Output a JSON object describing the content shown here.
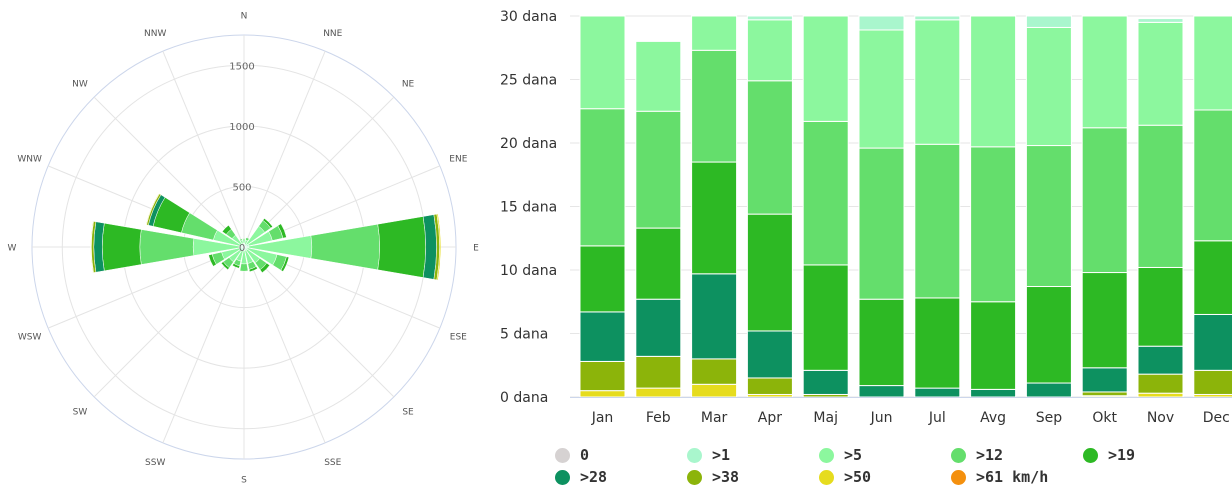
{
  "colors": {
    "0": "#d6d2d2",
    "1": "#a9f6cd",
    "5": "#8cf79e",
    "12": "#64de6c",
    "19": "#2db924",
    "28": "#0d9160",
    "38": "#8cb40a",
    "50": "#e6dc1e",
    "61": "#f4900e"
  },
  "chart_data": [
    {
      "type": "polar-stacked-bar",
      "directions": [
        "N",
        "NNE",
        "NE",
        "ENE",
        "E",
        "ESE",
        "SE",
        "SSE",
        "S",
        "SSW",
        "SW",
        "WSW",
        "W",
        "WNW",
        "NW",
        "NNW"
      ],
      "radial_ticks": [
        "0",
        "500",
        "1000",
        "1500"
      ],
      "rmax": 1750,
      "series": [
        {
          "name": ">1",
          "color_key": "1",
          "values": [
            30,
            20,
            30,
            40,
            40,
            30,
            30,
            30,
            30,
            30,
            40,
            40,
            40,
            30,
            30,
            30
          ]
        },
        {
          "name": ">5",
          "color_key": "5",
          "values": [
            30,
            40,
            180,
            200,
            520,
            250,
            130,
            110,
            110,
            90,
            110,
            150,
            380,
            230,
            90,
            30
          ]
        },
        {
          "name": ">12",
          "color_key": "12",
          "values": [
            10,
            20,
            60,
            90,
            560,
            80,
            70,
            50,
            60,
            40,
            60,
            80,
            440,
            270,
            60,
            10
          ]
        },
        {
          "name": ">19",
          "color_key": "19",
          "values": [
            0,
            0,
            20,
            30,
            380,
            20,
            30,
            20,
            0,
            20,
            20,
            30,
            310,
            240,
            40,
            0
          ]
        },
        {
          "name": ">28",
          "color_key": "28",
          "values": [
            0,
            0,
            0,
            0,
            90,
            0,
            0,
            0,
            0,
            0,
            0,
            0,
            70,
            40,
            0,
            0
          ]
        },
        {
          "name": ">38",
          "color_key": "38",
          "values": [
            0,
            0,
            0,
            0,
            25,
            0,
            0,
            0,
            0,
            0,
            0,
            0,
            20,
            15,
            0,
            0
          ]
        },
        {
          "name": ">50",
          "color_key": "50",
          "values": [
            0,
            0,
            0,
            0,
            10,
            0,
            0,
            0,
            0,
            0,
            0,
            0,
            5,
            5,
            0,
            0
          ]
        }
      ]
    },
    {
      "type": "bar",
      "stacked": true,
      "categories": [
        "Jan",
        "Feb",
        "Mar",
        "Apr",
        "Maj",
        "Jun",
        "Jul",
        "Avg",
        "Sep",
        "Okt",
        "Nov",
        "Dec"
      ],
      "yticks": [
        "0 dana",
        "5 dana",
        "10 dana",
        "15 dana",
        "20 dana",
        "25 dana",
        "30 dana"
      ],
      "ylim": [
        0,
        30
      ],
      "series": [
        {
          "name": ">50",
          "color_key": "50",
          "values": [
            0.5,
            0.7,
            1.0,
            0.2,
            0,
            0,
            0,
            0,
            0,
            0.1,
            0.3,
            0.2
          ]
        },
        {
          "name": ">38",
          "color_key": "38",
          "values": [
            2.3,
            2.5,
            2.0,
            1.3,
            0.2,
            0,
            0,
            0,
            0,
            0.3,
            1.5,
            1.9
          ]
        },
        {
          "name": ">28",
          "color_key": "28",
          "values": [
            3.9,
            4.5,
            6.7,
            3.7,
            1.9,
            0.9,
            0.7,
            0.6,
            1.1,
            1.9,
            2.2,
            4.4
          ]
        },
        {
          "name": ">19",
          "color_key": "19",
          "values": [
            5.2,
            5.6,
            8.8,
            9.2,
            8.3,
            6.8,
            7.1,
            6.9,
            7.6,
            7.5,
            6.2,
            5.8
          ]
        },
        {
          "name": ">12",
          "color_key": "12",
          "values": [
            10.8,
            9.2,
            8.8,
            10.5,
            11.3,
            11.9,
            12.1,
            12.2,
            11.1,
            11.4,
            11.2,
            10.3
          ]
        },
        {
          "name": ">5",
          "color_key": "5",
          "values": [
            7.3,
            5.5,
            2.7,
            4.8,
            8.3,
            9.3,
            9.8,
            10.3,
            9.3,
            8.8,
            8.1,
            7.4
          ]
        },
        {
          "name": ">1",
          "color_key": "1",
          "values": [
            0,
            0,
            0,
            0.3,
            0,
            1.1,
            0.3,
            0,
            0.9,
            0,
            0.3,
            0
          ]
        }
      ]
    }
  ],
  "legend": [
    {
      "label": "0",
      "color_key": "0"
    },
    {
      "label": ">1",
      "color_key": "1"
    },
    {
      "label": ">5",
      "color_key": "5"
    },
    {
      "label": ">12",
      "color_key": "12"
    },
    {
      "label": ">19",
      "color_key": "19"
    },
    {
      "label": ">28",
      "color_key": "28"
    },
    {
      "label": ">38",
      "color_key": "38"
    },
    {
      "label": ">50",
      "color_key": "50"
    },
    {
      "label": ">61 km/h",
      "color_key": "61"
    }
  ]
}
